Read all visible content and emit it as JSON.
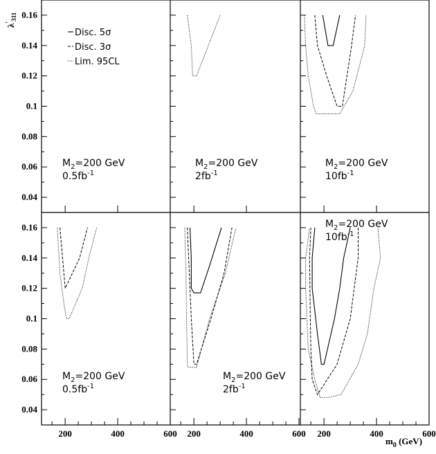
{
  "chart_data": {
    "type": "line",
    "xlabel": "m",
    "xlabel_sub": "0",
    "xlabel_unit": " (GeV)",
    "ylabel": "λ",
    "ylabel_sup": "'",
    "ylabel_sub": "311",
    "xlim": [
      110,
      600
    ],
    "ylim": [
      0.03,
      0.17
    ],
    "xticks": [
      200,
      400,
      600
    ],
    "x_tick_labels": [
      "200",
      "400",
      "600"
    ],
    "yticks": [
      0.04,
      0.06,
      0.08,
      0.1,
      0.12,
      0.14,
      0.16
    ],
    "y_tick_labels": [
      "0.04",
      "0.06",
      "0.08",
      "0.1",
      "0.12",
      "0.14",
      "0.16"
    ],
    "legend": {
      "placement": "top-left of first panel",
      "entries": [
        {
          "label": "Disc. 5σ",
          "style": "solid"
        },
        {
          "label": "Disc. 3σ",
          "style": "dashed"
        },
        {
          "label": "Lim. 95CL",
          "style": "dotted"
        }
      ]
    },
    "panels": [
      {
        "row": 0,
        "col": 0,
        "annotation_line1_main": "M",
        "annotation_line1_sub": "2",
        "annotation_line1_rest": "=200 GeV",
        "annotation_line2_main": "0.5fb",
        "annotation_line2_sup": "-1",
        "series": []
      },
      {
        "row": 0,
        "col": 1,
        "annotation_line1_main": "M",
        "annotation_line1_sub": "2",
        "annotation_line1_rest": "=200 GeV",
        "annotation_line2_main": "2fb",
        "annotation_line2_sup": "-1",
        "series": [
          {
            "style": "dotted",
            "points": [
              [
                175,
                0.16
              ],
              [
                190,
                0.14
              ],
              [
                195,
                0.12
              ],
              [
                210,
                0.12
              ],
              [
                300,
                0.16
              ]
            ]
          }
        ]
      },
      {
        "row": 0,
        "col": 2,
        "annotation_line1_main": "M",
        "annotation_line1_sub": "2",
        "annotation_line1_rest": "=200 GeV",
        "annotation_line2_main": "10fb",
        "annotation_line2_sup": "-1",
        "series": [
          {
            "style": "solid",
            "points": [
              [
                195,
                0.16
              ],
              [
                215,
                0.14
              ],
              [
                235,
                0.14
              ],
              [
                260,
                0.16
              ]
            ]
          },
          {
            "style": "dashed",
            "points": [
              [
                165,
                0.16
              ],
              [
                175,
                0.14
              ],
              [
                210,
                0.12
              ],
              [
                250,
                0.1
              ],
              [
                270,
                0.1
              ],
              [
                305,
                0.14
              ],
              [
                320,
                0.16
              ]
            ]
          },
          {
            "style": "dotted",
            "points": [
              [
                125,
                0.16
              ],
              [
                130,
                0.14
              ],
              [
                140,
                0.12
              ],
              [
                160,
                0.1
              ],
              [
                170,
                0.095
              ],
              [
                260,
                0.095
              ],
              [
                310,
                0.11
              ],
              [
                355,
                0.14
              ],
              [
                360,
                0.16
              ]
            ]
          }
        ]
      },
      {
        "row": 1,
        "col": 0,
        "annotation_line1_main": "M",
        "annotation_line1_sub": "2",
        "annotation_line1_rest": "=200 GeV",
        "annotation_line2_main": "0.5fb",
        "annotation_line2_sup": "-1",
        "series": [
          {
            "style": "dashed",
            "points": [
              [
                180,
                0.16
              ],
              [
                195,
                0.13
              ],
              [
                200,
                0.12
              ],
              [
                255,
                0.14
              ],
              [
                285,
                0.16
              ]
            ]
          },
          {
            "style": "dotted",
            "points": [
              [
                170,
                0.16
              ],
              [
                180,
                0.13
              ],
              [
                195,
                0.11
              ],
              [
                205,
                0.1
              ],
              [
                215,
                0.1
              ],
              [
                265,
                0.12
              ],
              [
                290,
                0.14
              ],
              [
                320,
                0.16
              ]
            ]
          }
        ]
      },
      {
        "row": 1,
        "col": 1,
        "annotation_line1_main": "M",
        "annotation_line1_sub": "2",
        "annotation_line1_rest": "=200 GeV",
        "annotation_line2_main": "2fb",
        "annotation_line2_sup": "-1",
        "series": [
          {
            "style": "solid",
            "points": [
              [
                185,
                0.16
              ],
              [
                190,
                0.14
              ],
              [
                190,
                0.12
              ],
              [
                200,
                0.117
              ],
              [
                225,
                0.117
              ],
              [
                260,
                0.135
              ],
              [
                305,
                0.16
              ]
            ]
          },
          {
            "style": "dashed",
            "points": [
              [
                175,
                0.16
              ],
              [
                180,
                0.14
              ],
              [
                185,
                0.12
              ],
              [
                190,
                0.1
              ],
              [
                200,
                0.07
              ],
              [
                210,
                0.07
              ],
              [
                265,
                0.1
              ],
              [
                315,
                0.13
              ],
              [
                345,
                0.16
              ]
            ]
          },
          {
            "style": "dotted",
            "points": [
              [
                165,
                0.16
              ],
              [
                170,
                0.13
              ],
              [
                172,
                0.1
              ],
              [
                175,
                0.07
              ],
              [
                178,
                0.068
              ],
              [
                210,
                0.068
              ],
              [
                260,
                0.1
              ],
              [
                320,
                0.13
              ],
              [
                360,
                0.16
              ]
            ]
          }
        ]
      },
      {
        "row": 1,
        "col": 2,
        "annotation_line1_main": "M",
        "annotation_line1_sub": "2",
        "annotation_line1_rest": "=200 GeV",
        "annotation_line2_main": "10fb",
        "annotation_line2_sup": "-1",
        "series": [
          {
            "style": "solid",
            "points": [
              [
                300,
                0.16
              ],
              [
                275,
                0.14
              ],
              [
                260,
                0.12
              ],
              [
                240,
                0.1
              ],
              [
                200,
                0.07
              ],
              [
                190,
                0.07
              ],
              [
                175,
                0.09
              ],
              [
                155,
                0.12
              ],
              [
                155,
                0.14
              ],
              [
                165,
                0.16
              ]
            ]
          },
          {
            "style": "dashed",
            "points": [
              [
                330,
                0.16
              ],
              [
                330,
                0.14
              ],
              [
                315,
                0.12
              ],
              [
                300,
                0.1
              ],
              [
                250,
                0.07
              ],
              [
                175,
                0.05
              ],
              [
                155,
                0.06
              ],
              [
                150,
                0.08
              ],
              [
                148,
                0.1
              ],
              [
                145,
                0.14
              ],
              [
                150,
                0.16
              ]
            ]
          },
          {
            "style": "dotted",
            "points": [
              [
                405,
                0.16
              ],
              [
                415,
                0.14
              ],
              [
                390,
                0.12
              ],
              [
                365,
                0.09
              ],
              [
                330,
                0.07
              ],
              [
                265,
                0.05
              ],
              [
                215,
                0.048
              ],
              [
                185,
                0.048
              ],
              [
                165,
                0.06
              ],
              [
                140,
                0.08
              ],
              [
                135,
                0.1
              ],
              [
                130,
                0.12
              ],
              [
                130,
                0.14
              ],
              [
                145,
                0.16
              ]
            ]
          }
        ]
      }
    ]
  }
}
